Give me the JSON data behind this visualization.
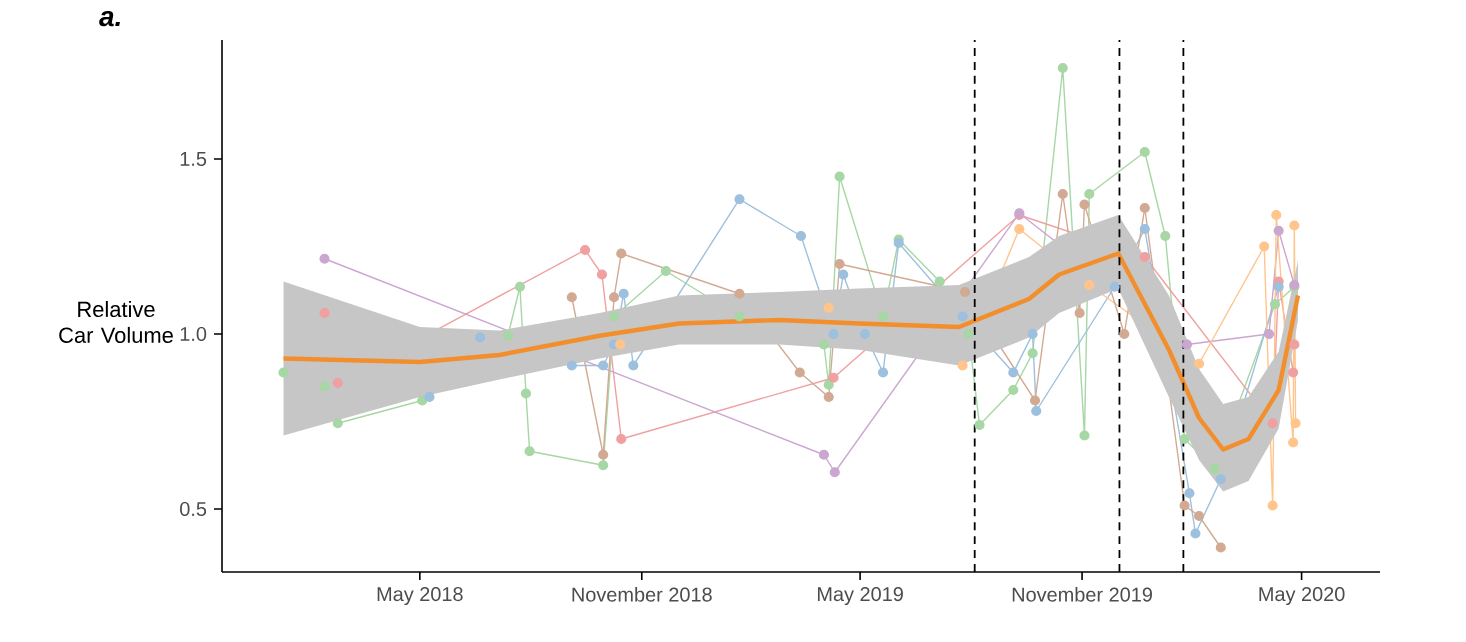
{
  "chart_data": {
    "type": "line",
    "title": "a.",
    "ylabel": "Relative Car Volume",
    "marker": "circle",
    "line_style": "solid",
    "xlim": [
      "2017-11-18",
      "2020-07-05"
    ],
    "ylim": [
      0.32,
      1.84
    ],
    "xticks": [
      {
        "value": "2018-05-01",
        "label": "May 2018"
      },
      {
        "value": "2018-11-01",
        "label": "November 2018"
      },
      {
        "value": "2019-05-01",
        "label": "May 2019"
      },
      {
        "value": "2019-11-01",
        "label": "November 2019"
      },
      {
        "value": "2020-05-01",
        "label": "May 2020"
      }
    ],
    "yticks": [
      0.5,
      {
        "value": 1.0,
        "label": "1.0"
      },
      1.5
    ],
    "ref_lines": [
      {
        "axis": "x",
        "value": "2019-08-04",
        "color": "#000000",
        "line_style": "dashed"
      },
      {
        "axis": "x",
        "value": "2019-12-02",
        "color": "#000000",
        "line_style": "dashed"
      },
      {
        "axis": "x",
        "value": "2020-01-24",
        "color": "#000000",
        "line_style": "dashed"
      }
    ],
    "series": [
      {
        "color": "#a6d7a4",
        "x": [
          "2018-01-08",
          "2018-02-11",
          "2018-02-22",
          "2018-05-03",
          "2018-07-13",
          "2018-07-23",
          "2018-07-28",
          "2018-07-31",
          "2018-09-30",
          "2018-10-09",
          "2018-11-21",
          "2019-01-21",
          "2019-04-01",
          "2019-04-05",
          "2019-04-14",
          "2019-05-20",
          "2019-06-02",
          "2019-07-06",
          "2019-07-30",
          "2019-08-08",
          "2019-09-05",
          "2019-09-21",
          "2019-10-16",
          "2019-11-03",
          "2019-11-07",
          "2019-12-23",
          "2020-01-09",
          "2020-01-25",
          "2020-02-19",
          "2020-04-09",
          "2020-04-25"
        ],
        "values": [
          0.89,
          0.85,
          0.745,
          0.81,
          0.995,
          1.135,
          0.83,
          0.665,
          0.625,
          1.05,
          1.18,
          1.05,
          0.97,
          0.855,
          1.45,
          1.05,
          1.27,
          1.15,
          1.0,
          0.74,
          0.84,
          0.945,
          1.76,
          0.71,
          1.4,
          1.52,
          1.28,
          0.7,
          0.615,
          1.085,
          1.135
        ]
      },
      {
        "color": "#f0a0a0",
        "x": [
          "2018-02-11",
          "2018-02-22",
          "2018-09-15",
          "2018-09-29",
          "2018-10-15",
          "2019-04-09",
          "2019-09-10",
          "2019-12-23",
          "2020-04-07",
          "2020-04-12",
          "2020-04-24",
          "2020-04-25"
        ],
        "values": [
          1.06,
          0.86,
          1.24,
          1.17,
          0.7,
          0.875,
          1.34,
          1.22,
          0.745,
          1.15,
          0.89,
          0.97
        ]
      },
      {
        "color": "#9cc0de",
        "x": [
          "2018-05-09",
          "2018-06-20",
          "2018-09-04",
          "2018-09-30",
          "2018-10-09",
          "2018-10-17",
          "2018-10-25",
          "2019-01-21",
          "2019-03-13",
          "2019-04-09",
          "2019-04-17",
          "2019-05-05",
          "2019-05-20",
          "2019-06-02",
          "2019-07-25",
          "2019-09-05",
          "2019-09-21",
          "2019-09-24",
          "2019-11-28",
          "2019-12-23",
          "2020-01-29",
          "2020-02-03",
          "2020-02-24",
          "2020-04-12"
        ],
        "values": [
          0.82,
          0.99,
          0.91,
          0.91,
          0.97,
          1.115,
          0.91,
          1.385,
          1.28,
          1.0,
          1.17,
          1.0,
          0.89,
          1.26,
          1.05,
          0.89,
          1.0,
          0.78,
          1.135,
          1.3,
          0.545,
          0.43,
          0.585,
          1.135
        ]
      },
      {
        "color": "#cba6d1",
        "x": [
          "2018-02-11",
          "2019-04-01",
          "2019-04-10",
          "2019-09-10",
          "2020-01-27",
          "2020-04-04",
          "2020-04-12",
          "2020-04-25"
        ],
        "values": [
          1.215,
          0.655,
          0.605,
          1.345,
          0.97,
          1.0,
          1.295,
          1.14
        ]
      },
      {
        "color": "#ffc58c",
        "x": [
          "2018-10-14",
          "2019-04-05",
          "2019-07-25",
          "2019-09-10",
          "2019-11-07",
          "2020-02-06",
          "2020-03-31",
          "2020-04-07",
          "2020-04-10",
          "2020-04-24",
          "2020-04-25",
          "2020-04-26"
        ],
        "values": [
          0.97,
          1.075,
          0.91,
          1.3,
          1.14,
          0.915,
          1.25,
          0.51,
          1.34,
          0.69,
          1.31,
          0.745
        ]
      },
      {
        "color": "#d2aa93",
        "x": [
          "2018-09-04",
          "2018-09-30",
          "2018-10-09",
          "2018-10-15",
          "2019-01-21",
          "2019-03-12",
          "2019-04-05",
          "2019-04-14",
          "2019-07-27",
          "2019-09-23",
          "2019-10-16",
          "2019-10-30",
          "2019-11-03",
          "2019-12-06",
          "2019-12-23",
          "2020-01-25",
          "2020-02-06",
          "2020-02-24"
        ],
        "values": [
          1.105,
          0.655,
          1.105,
          1.23,
          1.115,
          0.89,
          0.82,
          1.2,
          1.12,
          0.81,
          1.4,
          1.06,
          1.37,
          1.0,
          1.36,
          0.51,
          0.48,
          0.39
        ]
      },
      {
        "color": "#f28e2b",
        "marker": "none",
        "x": [
          "2018-01-08",
          "2018-05-01",
          "2018-07-06",
          "2018-09-27",
          "2018-12-02",
          "2019-02-23",
          "2019-04-30",
          "2019-07-22",
          "2019-09-18",
          "2019-10-13",
          "2019-12-01",
          "2020-01-12",
          "2020-02-06",
          "2020-02-26",
          "2020-03-18",
          "2020-04-12",
          "2020-04-28"
        ],
        "values": [
          0.93,
          0.92,
          0.94,
          0.995,
          1.03,
          1.04,
          1.03,
          1.02,
          1.1,
          1.17,
          1.23,
          0.955,
          0.76,
          0.67,
          0.7,
          0.84,
          1.11
        ],
        "upper": [
          1.15,
          1.02,
          1.01,
          1.06,
          1.11,
          1.12,
          1.13,
          1.14,
          1.22,
          1.28,
          1.34,
          1.11,
          0.9,
          0.8,
          0.82,
          0.95,
          1.21
        ],
        "lower": [
          0.71,
          0.82,
          0.87,
          0.93,
          0.97,
          0.97,
          0.955,
          0.91,
          0.99,
          1.06,
          1.13,
          0.82,
          0.64,
          0.55,
          0.58,
          0.73,
          1.04
        ]
      }
    ]
  }
}
